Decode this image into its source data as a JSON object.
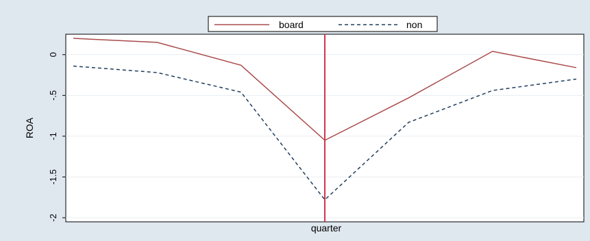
{
  "chart_data": {
    "type": "line",
    "title": "",
    "xlabel": "quarter",
    "ylabel": "ROA",
    "ylim": [
      -2.05,
      0.25
    ],
    "yticks": [
      0,
      -0.5,
      -1,
      -1.5,
      -2
    ],
    "ytick_labels": [
      "0",
      "-.5",
      "-1",
      "-1.5",
      "-2"
    ],
    "x": [
      1,
      2,
      3,
      4,
      5,
      6,
      7
    ],
    "xlim": [
      1,
      7
    ],
    "grid": true,
    "legend_position": "top-center",
    "vertical_marker_x": 4,
    "series": [
      {
        "name": "board",
        "values": [
          0.2,
          0.15,
          -0.13,
          -1.05,
          -0.53,
          0.04,
          -0.16
        ],
        "color": "#a94a4a",
        "style": "solid"
      },
      {
        "name": "non",
        "values": [
          -0.14,
          -0.22,
          -0.46,
          -1.78,
          -0.83,
          -0.44,
          -0.3
        ],
        "color": "#1f3d5c",
        "style": "dashed"
      }
    ],
    "colors": {
      "background": "#dfe7ef",
      "plot_background": "#ffffff",
      "grid": "#e8edf2",
      "marker": "#d2334f"
    }
  }
}
